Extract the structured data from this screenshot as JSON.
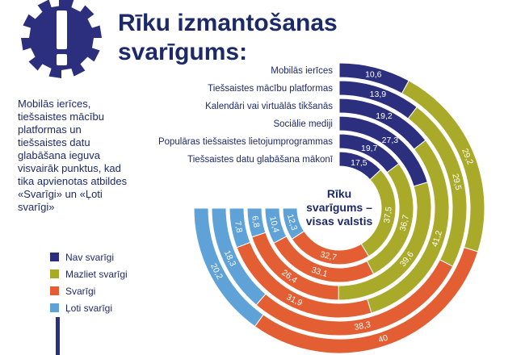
{
  "title_line1": "Rīku izmantošanas",
  "title_line2": "svarīgums:",
  "note": "Mobilās ierīces, tiešsaistes mācību platformas un tiešsaistes datu glabāšana ieguva visvairāk punktus, kad tika apvienotas atbildes «Svarīgi» un «Ļoti svarīgi»",
  "center_label": [
    "Rīku",
    "svarīgums –",
    "visas valstis"
  ],
  "chart_data": {
    "type": "radial-stacked-bar",
    "title": "Rīku svarīgums – visas valstis",
    "series_order": [
      "Nav svarīgi",
      "Mazliet svarīgi",
      "Svarīgi",
      "Ļoti svarīgi"
    ],
    "colors": {
      "Nav svarīgi": "#2b2f7e",
      "Mazliet svarīgi": "#a9a92a",
      "Svarīgi": "#e35f33",
      "Ļoti svarīgi": "#5ea2d8"
    },
    "categories": [
      {
        "name": "Mobilās ierīces",
        "values": [
          10.6,
          29.2,
          40.0,
          20.2
        ],
        "labels": [
          "10,6",
          "29,2",
          "40",
          "20,2"
        ]
      },
      {
        "name": "Tiešsaistes mācību platformas",
        "values": [
          13.9,
          29.5,
          38.3,
          18.3
        ],
        "labels": [
          "13,9",
          "29,5",
          "38,3",
          "18,3"
        ]
      },
      {
        "name": "Kalendāri vai virtuālās tikšanās",
        "values": [
          19.2,
          41.2,
          31.9,
          7.8
        ],
        "labels": [
          "19,2",
          "41,2",
          "31,9",
          "7,8"
        ]
      },
      {
        "name": "Sociālie mediji",
        "values": [
          27.3,
          39.6,
          26.4,
          6.8
        ],
        "labels": [
          "27,3",
          "39,6",
          "26,4",
          "6,8"
        ]
      },
      {
        "name": "Populāras tiešsaistes lietojumprogrammas",
        "values": [
          19.7,
          36.7,
          33.1,
          10.4
        ],
        "labels": [
          "19,7",
          "36,7",
          "33,1",
          "10,4"
        ]
      },
      {
        "name": "Tiešsaistes datu glabāšana mākonī",
        "values": [
          17.5,
          37.5,
          32.7,
          12.3
        ],
        "labels": [
          "17,5",
          "37,5",
          "32,7",
          "12,3"
        ]
      }
    ]
  }
}
